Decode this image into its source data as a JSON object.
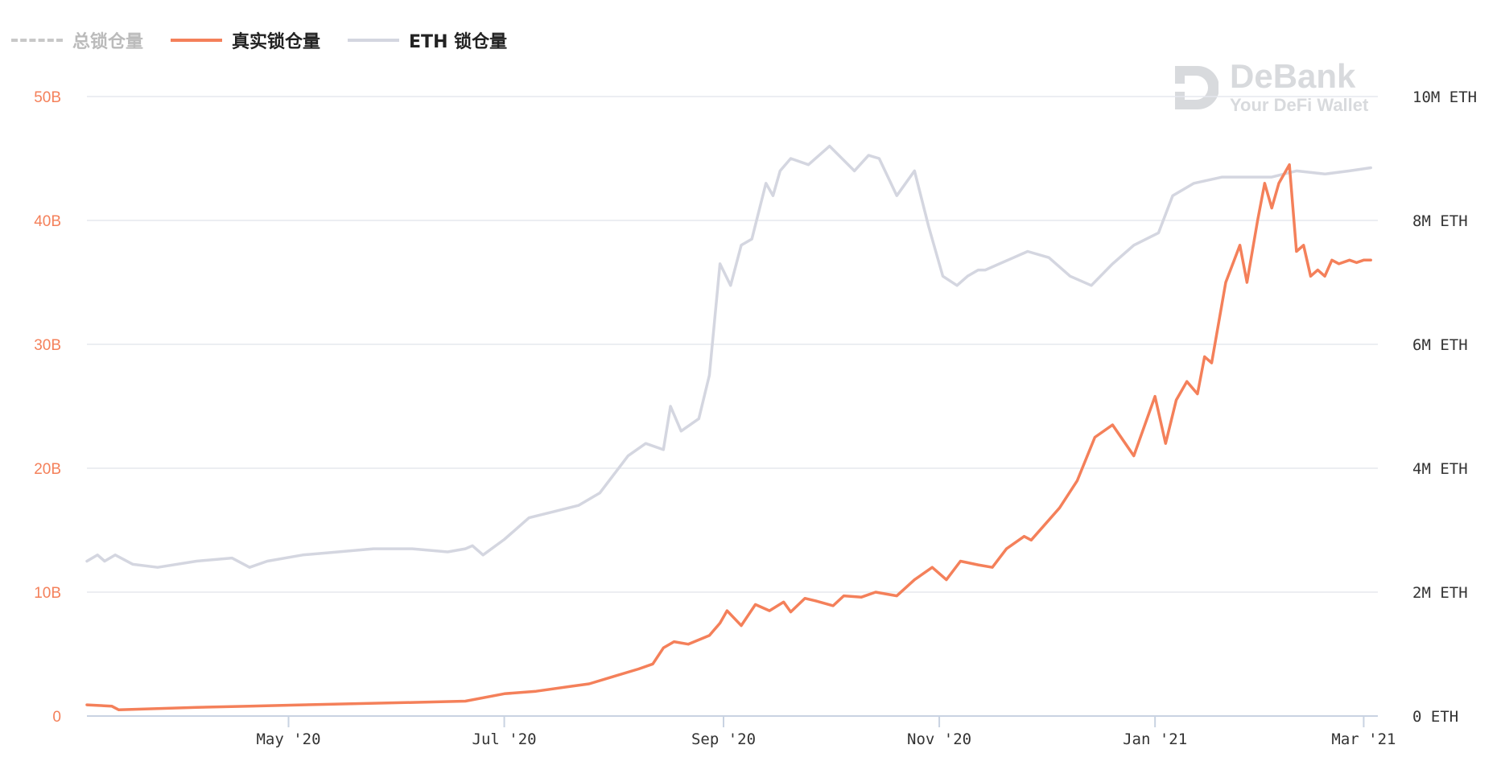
{
  "legend": [
    {
      "label": "总锁仓量",
      "color": "#c8c8c8",
      "dashed": true,
      "label_color": "#bbbbbb"
    },
    {
      "label": "真实锁仓量",
      "color": "#f4805a",
      "dashed": false,
      "label_color": "#222222"
    },
    {
      "label": "ETH 锁仓量",
      "color": "#d4d6e0",
      "dashed": false,
      "label_color": "#222222"
    }
  ],
  "watermark": {
    "title": "DeBank",
    "subtitle": "Your DeFi Wallet",
    "color": "#d8dadd"
  },
  "colors": {
    "accent": "#f4805a",
    "eth_line": "#d4d6e0",
    "grid": "#e6e8ee",
    "axis": "#c9d3e2",
    "left_tick": "#f4805a",
    "right_tick": "#333333"
  },
  "chart_data": {
    "type": "line",
    "title": "",
    "xlabel": "",
    "ylabel": "",
    "y_left": {
      "ticks": [
        0,
        10,
        20,
        30,
        40,
        50
      ],
      "tick_labels": [
        "0",
        "10B",
        "20B",
        "30B",
        "40B",
        "50B"
      ],
      "range": [
        0,
        50
      ],
      "unit": "B"
    },
    "y_right": {
      "ticks": [
        0,
        2,
        4,
        6,
        8,
        10
      ],
      "tick_labels": [
        "0 ETH",
        "2M ETH",
        "4M ETH",
        "6M ETH",
        "8M ETH",
        "10M ETH"
      ],
      "range": [
        0,
        10
      ],
      "unit": "M ETH"
    },
    "x": {
      "range": [
        "2020-03-05",
        "2021-03-05"
      ],
      "ticks": [
        "2020-05-01",
        "2020-07-01",
        "2020-09-01",
        "2020-11-01",
        "2021-01-01",
        "2021-03-01"
      ],
      "tick_labels": [
        "May '20",
        "Jul '20",
        "Sep '20",
        "Nov '20",
        "Jan '21",
        "Mar '21"
      ]
    },
    "grid": true,
    "legend_position": "top-left",
    "series": [
      {
        "name": "真实锁仓量",
        "axis": "left",
        "color": "#f4805a",
        "x": [
          "2020-03-05",
          "2020-03-12",
          "2020-03-14",
          "2020-03-25",
          "2020-04-05",
          "2020-04-20",
          "2020-05-05",
          "2020-05-20",
          "2020-06-05",
          "2020-06-20",
          "2020-07-01",
          "2020-07-10",
          "2020-07-20",
          "2020-07-25",
          "2020-08-01",
          "2020-08-08",
          "2020-08-12",
          "2020-08-15",
          "2020-08-18",
          "2020-08-22",
          "2020-08-28",
          "2020-08-31",
          "2020-09-02",
          "2020-09-06",
          "2020-09-10",
          "2020-09-14",
          "2020-09-18",
          "2020-09-20",
          "2020-09-24",
          "2020-09-27",
          "2020-10-02",
          "2020-10-05",
          "2020-10-10",
          "2020-10-14",
          "2020-10-20",
          "2020-10-25",
          "2020-10-30",
          "2020-11-03",
          "2020-11-07",
          "2020-11-12",
          "2020-11-16",
          "2020-11-20",
          "2020-11-25",
          "2020-11-27",
          "2020-12-01",
          "2020-12-05",
          "2020-12-10",
          "2020-12-15",
          "2020-12-20",
          "2020-12-26",
          "2021-01-01",
          "2021-01-04",
          "2021-01-07",
          "2021-01-10",
          "2021-01-13",
          "2021-01-15",
          "2021-01-17",
          "2021-01-21",
          "2021-01-25",
          "2021-01-27",
          "2021-01-30",
          "2021-02-01",
          "2021-02-03",
          "2021-02-05",
          "2021-02-08",
          "2021-02-10",
          "2021-02-12",
          "2021-02-14",
          "2021-02-16",
          "2021-02-18",
          "2021-02-20",
          "2021-02-22",
          "2021-02-25",
          "2021-02-27",
          "2021-03-01",
          "2021-03-03"
        ],
        "values": [
          0.9,
          0.8,
          0.5,
          0.6,
          0.7,
          0.8,
          0.9,
          1.0,
          1.1,
          1.2,
          1.8,
          2.0,
          2.4,
          2.6,
          3.2,
          3.8,
          4.2,
          5.5,
          6.0,
          5.8,
          6.5,
          7.5,
          8.5,
          7.3,
          9.0,
          8.5,
          9.2,
          8.4,
          9.5,
          9.3,
          8.9,
          9.7,
          9.6,
          10.0,
          9.7,
          11.0,
          12.0,
          11.0,
          12.5,
          12.2,
          12.0,
          13.5,
          14.5,
          14.2,
          15.5,
          16.8,
          19.0,
          22.5,
          23.5,
          21.0,
          25.8,
          22.0,
          25.5,
          27.0,
          26.0,
          29.0,
          28.5,
          35.0,
          38.0,
          35.0,
          40.0,
          43.0,
          41.0,
          43.0,
          44.5,
          37.5,
          38.0,
          35.5,
          36.0,
          35.5,
          36.8,
          36.5,
          36.8,
          36.6,
          36.8,
          36.8
        ]
      },
      {
        "name": "ETH 锁仓量",
        "axis": "right",
        "color": "#d4d6e0",
        "x": [
          "2020-03-05",
          "2020-03-08",
          "2020-03-10",
          "2020-03-13",
          "2020-03-18",
          "2020-03-25",
          "2020-04-05",
          "2020-04-15",
          "2020-04-20",
          "2020-04-25",
          "2020-05-05",
          "2020-05-15",
          "2020-05-25",
          "2020-06-05",
          "2020-06-15",
          "2020-06-20",
          "2020-06-22",
          "2020-06-25",
          "2020-07-01",
          "2020-07-08",
          "2020-07-15",
          "2020-07-22",
          "2020-07-28",
          "2020-08-05",
          "2020-08-10",
          "2020-08-15",
          "2020-08-17",
          "2020-08-20",
          "2020-08-25",
          "2020-08-28",
          "2020-08-31",
          "2020-09-03",
          "2020-09-06",
          "2020-09-09",
          "2020-09-13",
          "2020-09-15",
          "2020-09-17",
          "2020-09-20",
          "2020-09-25",
          "2020-10-01",
          "2020-10-08",
          "2020-10-12",
          "2020-10-15",
          "2020-10-20",
          "2020-10-25",
          "2020-10-29",
          "2020-11-02",
          "2020-11-06",
          "2020-11-09",
          "2020-11-12",
          "2020-11-14",
          "2020-11-18",
          "2020-11-22",
          "2020-11-26",
          "2020-12-02",
          "2020-12-08",
          "2020-12-14",
          "2020-12-20",
          "2020-12-26",
          "2021-01-02",
          "2021-01-06",
          "2021-01-12",
          "2021-01-20",
          "2021-01-28",
          "2021-02-03",
          "2021-02-10",
          "2021-02-18",
          "2021-02-25",
          "2021-03-03"
        ],
        "values": [
          2.5,
          2.6,
          2.5,
          2.6,
          2.45,
          2.4,
          2.5,
          2.55,
          2.4,
          2.5,
          2.6,
          2.65,
          2.7,
          2.7,
          2.65,
          2.7,
          2.75,
          2.6,
          2.85,
          3.2,
          3.3,
          3.4,
          3.6,
          4.2,
          4.4,
          4.3,
          5.0,
          4.6,
          4.8,
          5.5,
          7.3,
          6.95,
          7.6,
          7.7,
          8.6,
          8.4,
          8.8,
          9.0,
          8.9,
          9.2,
          8.8,
          9.05,
          9.0,
          8.4,
          8.8,
          7.9,
          7.1,
          6.95,
          7.1,
          7.2,
          7.2,
          7.3,
          7.4,
          7.5,
          7.4,
          7.1,
          6.95,
          7.3,
          7.6,
          7.8,
          8.4,
          8.6,
          8.7,
          8.7,
          8.7,
          8.8,
          8.75,
          8.8,
          8.85
        ]
      }
    ]
  }
}
